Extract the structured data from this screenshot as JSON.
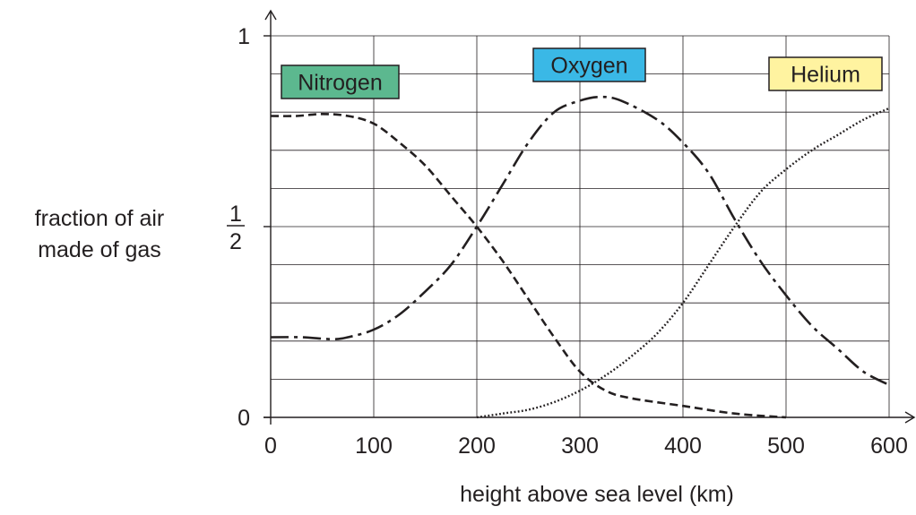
{
  "chart_data": {
    "type": "line",
    "title": "",
    "xlabel": "height above sea level (km)",
    "ylabel": [
      "fraction of air",
      "made of gas"
    ],
    "xlim": [
      0,
      600
    ],
    "ylim": [
      0,
      1
    ],
    "x_ticks": [
      {
        "value": 0,
        "label": "0"
      },
      {
        "value": 100,
        "label": "100"
      },
      {
        "value": 200,
        "label": "200"
      },
      {
        "value": 300,
        "label": "300"
      },
      {
        "value": 400,
        "label": "400"
      },
      {
        "value": 500,
        "label": "500"
      },
      {
        "value": 600,
        "label": "600"
      }
    ],
    "y_ticks": [
      {
        "value": 0,
        "label": "0"
      },
      {
        "value": 0.5,
        "label": "1/2",
        "numerator": "1",
        "denominator": "2"
      },
      {
        "value": 1,
        "label": "1"
      }
    ],
    "grid": true,
    "series": [
      {
        "name": "Nitrogen",
        "label_color": "#5cb88f",
        "dash": "dashed",
        "x": [
          0,
          25,
          50,
          75,
          100,
          125,
          150,
          175,
          200,
          225,
          250,
          275,
          300,
          325,
          350,
          400,
          450,
          500
        ],
        "y": [
          0.79,
          0.79,
          0.795,
          0.79,
          0.77,
          0.72,
          0.66,
          0.58,
          0.5,
          0.41,
          0.31,
          0.21,
          0.12,
          0.07,
          0.05,
          0.03,
          0.01,
          0.0
        ]
      },
      {
        "name": "Oxygen",
        "label_color": "#3ab8e6",
        "dash": "dash-dot",
        "x": [
          0,
          30,
          60,
          75,
          100,
          125,
          150,
          175,
          200,
          225,
          250,
          275,
          300,
          320,
          340,
          375,
          400,
          425,
          450,
          475,
          500,
          525,
          550,
          575,
          600
        ],
        "y": [
          0.21,
          0.21,
          0.205,
          0.21,
          0.23,
          0.27,
          0.33,
          0.4,
          0.5,
          0.61,
          0.72,
          0.8,
          0.83,
          0.84,
          0.83,
          0.78,
          0.72,
          0.64,
          0.52,
          0.41,
          0.32,
          0.24,
          0.18,
          0.12,
          0.085
        ]
      },
      {
        "name": "Helium",
        "label_color": "#fff3a0",
        "dash": "dotted",
        "x": [
          200,
          225,
          250,
          275,
          300,
          325,
          350,
          375,
          400,
          425,
          450,
          475,
          500,
          525,
          550,
          575,
          600
        ],
        "y": [
          0.0,
          0.01,
          0.02,
          0.04,
          0.07,
          0.11,
          0.16,
          0.22,
          0.3,
          0.4,
          0.5,
          0.59,
          0.65,
          0.7,
          0.74,
          0.78,
          0.81
        ]
      }
    ]
  }
}
